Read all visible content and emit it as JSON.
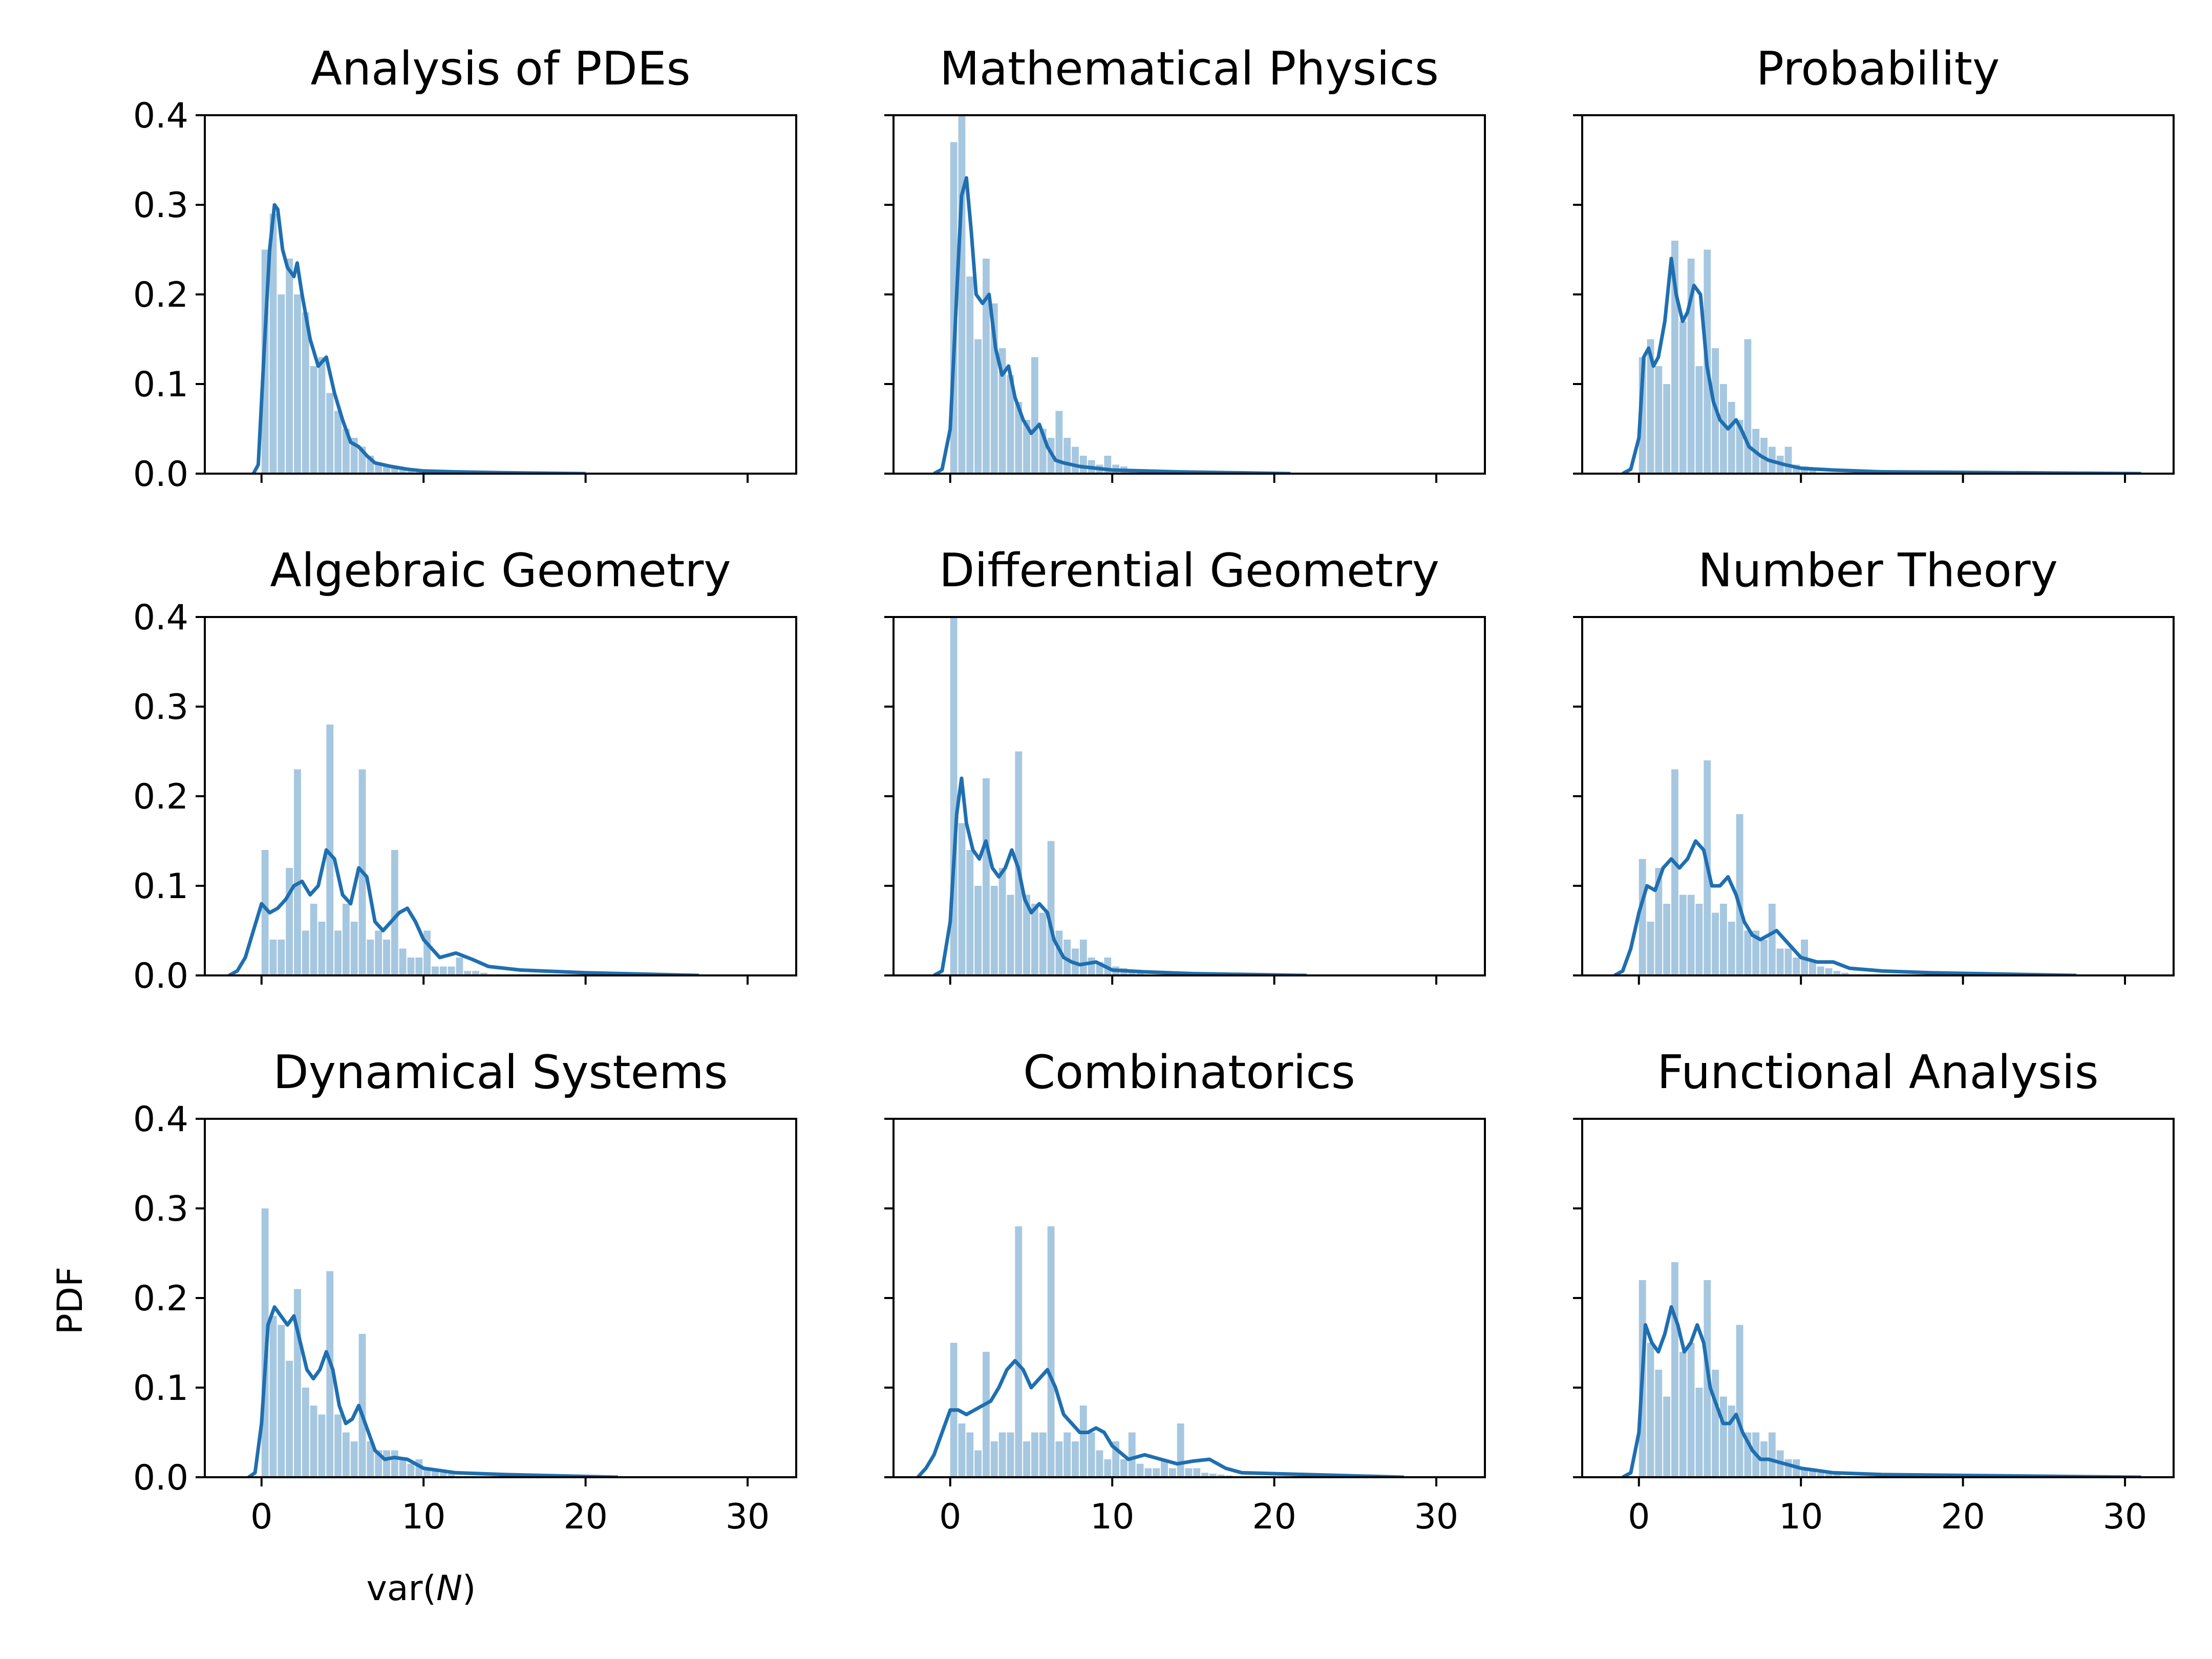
{
  "chart_data": [
    {
      "type": "histogram",
      "title": "Analysis of PDEs",
      "xlim": [
        -3.5,
        33
      ],
      "ylim": [
        0,
        0.4
      ],
      "xticks": [
        0,
        10,
        20,
        30
      ],
      "yticks": [
        0.0,
        0.1,
        0.2,
        0.3,
        0.4
      ],
      "bin_width": 0.5,
      "hist_values": [
        0.25,
        0.29,
        0.2,
        0.24,
        0.2,
        0.18,
        0.12,
        0.13,
        0.09,
        0.07,
        0.05,
        0.04,
        0.03,
        0.02,
        0.01,
        0.008,
        0.006,
        0.005,
        0.004,
        0.003
      ],
      "kde_x": [
        -0.5,
        -0.2,
        0.2,
        0.5,
        0.8,
        1.0,
        1.3,
        1.6,
        2.0,
        2.2,
        2.5,
        3.0,
        3.5,
        4.0,
        4.5,
        5.0,
        5.5,
        6.0,
        6.5,
        7.0,
        8.0,
        9.0,
        10.0,
        12.0,
        15.0,
        20.0
      ],
      "kde_y": [
        0.0,
        0.01,
        0.15,
        0.25,
        0.3,
        0.295,
        0.25,
        0.23,
        0.22,
        0.235,
        0.2,
        0.15,
        0.12,
        0.13,
        0.09,
        0.06,
        0.035,
        0.03,
        0.02,
        0.012,
        0.008,
        0.005,
        0.003,
        0.002,
        0.001,
        0.0
      ],
      "xlabel": "",
      "ylabel": ""
    },
    {
      "type": "histogram",
      "title": "Mathematical Physics",
      "xlim": [
        -3.5,
        33
      ],
      "ylim": [
        0,
        0.4
      ],
      "xticks": [
        0,
        10,
        20,
        30
      ],
      "yticks": [
        0.0,
        0.1,
        0.2,
        0.3,
        0.4
      ],
      "bin_width": 0.5,
      "hist_values": [
        0.37,
        0.4,
        0.22,
        0.15,
        0.24,
        0.19,
        0.14,
        0.11,
        0.08,
        0.06,
        0.13,
        0.05,
        0.04,
        0.07,
        0.04,
        0.03,
        0.02,
        0.015,
        0.01,
        0.02,
        0.01,
        0.008,
        0.005,
        0.004,
        0.003
      ],
      "kde_x": [
        -1.0,
        -0.5,
        0.0,
        0.4,
        0.7,
        1.0,
        1.3,
        1.6,
        2.0,
        2.4,
        2.8,
        3.2,
        3.6,
        4.0,
        4.5,
        5.0,
        5.5,
        6.0,
        6.5,
        7.0,
        8.0,
        9.0,
        10.0,
        12.0,
        14.0,
        21.0
      ],
      "kde_y": [
        0.0,
        0.005,
        0.05,
        0.2,
        0.31,
        0.33,
        0.27,
        0.2,
        0.19,
        0.2,
        0.14,
        0.11,
        0.12,
        0.085,
        0.06,
        0.045,
        0.055,
        0.03,
        0.015,
        0.012,
        0.008,
        0.006,
        0.004,
        0.003,
        0.002,
        0.0
      ],
      "xlabel": "",
      "ylabel": ""
    },
    {
      "type": "histogram",
      "title": "Probability",
      "xlim": [
        -3.5,
        33
      ],
      "ylim": [
        0,
        0.4
      ],
      "xticks": [
        0,
        10,
        20,
        30
      ],
      "yticks": [
        0.0,
        0.1,
        0.2,
        0.3,
        0.4
      ],
      "bin_width": 0.5,
      "hist_values": [
        0.13,
        0.15,
        0.12,
        0.1,
        0.26,
        0.17,
        0.24,
        0.12,
        0.25,
        0.14,
        0.1,
        0.08,
        0.06,
        0.15,
        0.05,
        0.04,
        0.03,
        0.02,
        0.03,
        0.01,
        0.008,
        0.005
      ],
      "kde_x": [
        -1.0,
        -0.5,
        0.0,
        0.3,
        0.6,
        0.9,
        1.2,
        1.6,
        2.0,
        2.3,
        2.7,
        3.0,
        3.4,
        3.8,
        4.2,
        4.6,
        5.0,
        5.5,
        6.0,
        6.3,
        6.8,
        7.5,
        8.0,
        9.0,
        10.0,
        12.0,
        15.0,
        31.0
      ],
      "kde_y": [
        0.0,
        0.005,
        0.04,
        0.13,
        0.14,
        0.12,
        0.13,
        0.17,
        0.24,
        0.2,
        0.17,
        0.18,
        0.21,
        0.2,
        0.12,
        0.08,
        0.06,
        0.05,
        0.06,
        0.05,
        0.03,
        0.02,
        0.015,
        0.01,
        0.006,
        0.004,
        0.002,
        0.0
      ],
      "xlabel": "",
      "ylabel": ""
    },
    {
      "type": "histogram",
      "title": "Algebraic Geometry",
      "xlim": [
        -3.5,
        33
      ],
      "ylim": [
        0,
        0.4
      ],
      "xticks": [
        0,
        10,
        20,
        30
      ],
      "yticks": [
        0.0,
        0.1,
        0.2,
        0.3,
        0.4
      ],
      "bin_width": 0.5,
      "hist_values": [
        0.14,
        0.04,
        0.04,
        0.12,
        0.23,
        0.05,
        0.08,
        0.06,
        0.28,
        0.05,
        0.08,
        0.06,
        0.23,
        0.04,
        0.05,
        0.04,
        0.14,
        0.03,
        0.02,
        0.02,
        0.05,
        0.01,
        0.01,
        0.01,
        0.02,
        0.005,
        0.005,
        0.003
      ],
      "kde_x": [
        -2.0,
        -1.5,
        -1.0,
        -0.5,
        0.0,
        0.5,
        1.0,
        1.5,
        2.0,
        2.5,
        3.0,
        3.5,
        4.0,
        4.5,
        5.0,
        5.5,
        6.0,
        6.5,
        7.0,
        7.5,
        8.0,
        8.5,
        9.0,
        9.5,
        10.0,
        11.0,
        12.0,
        13.0,
        14.0,
        16.0,
        20.0,
        27.0
      ],
      "kde_y": [
        0.0,
        0.005,
        0.02,
        0.05,
        0.08,
        0.07,
        0.075,
        0.085,
        0.1,
        0.105,
        0.09,
        0.1,
        0.14,
        0.13,
        0.09,
        0.08,
        0.12,
        0.11,
        0.06,
        0.05,
        0.06,
        0.07,
        0.075,
        0.06,
        0.04,
        0.02,
        0.025,
        0.018,
        0.01,
        0.006,
        0.003,
        0.0
      ],
      "xlabel": "",
      "ylabel": ""
    },
    {
      "type": "histogram",
      "title": "Differential Geometry",
      "xlim": [
        -3.5,
        33
      ],
      "ylim": [
        0,
        0.4
      ],
      "xticks": [
        0,
        10,
        20,
        30
      ],
      "yticks": [
        0.0,
        0.1,
        0.2,
        0.3,
        0.4
      ],
      "bin_width": 0.5,
      "hist_values": [
        0.4,
        0.17,
        0.14,
        0.1,
        0.22,
        0.1,
        0.12,
        0.09,
        0.25,
        0.09,
        0.08,
        0.07,
        0.15,
        0.05,
        0.04,
        0.03,
        0.04,
        0.02,
        0.015,
        0.02,
        0.01,
        0.008,
        0.005,
        0.004
      ],
      "kde_x": [
        -1.0,
        -0.5,
        0.0,
        0.4,
        0.7,
        1.0,
        1.4,
        1.8,
        2.2,
        2.6,
        3.0,
        3.4,
        3.8,
        4.2,
        4.6,
        5.0,
        5.5,
        6.0,
        6.4,
        7.0,
        7.5,
        8.0,
        9.0,
        10.0,
        12.0,
        15.0,
        22.0
      ],
      "kde_y": [
        0.0,
        0.005,
        0.06,
        0.18,
        0.22,
        0.17,
        0.14,
        0.13,
        0.15,
        0.12,
        0.11,
        0.12,
        0.14,
        0.12,
        0.085,
        0.07,
        0.08,
        0.07,
        0.04,
        0.02,
        0.015,
        0.012,
        0.015,
        0.006,
        0.004,
        0.002,
        0.0
      ],
      "xlabel": "",
      "ylabel": ""
    },
    {
      "type": "histogram",
      "title": "Number Theory",
      "xlim": [
        -3.5,
        33
      ],
      "ylim": [
        0,
        0.4
      ],
      "xticks": [
        0,
        10,
        20,
        30
      ],
      "yticks": [
        0.0,
        0.1,
        0.2,
        0.3,
        0.4
      ],
      "bin_width": 0.5,
      "hist_values": [
        0.13,
        0.06,
        0.12,
        0.08,
        0.23,
        0.09,
        0.09,
        0.08,
        0.24,
        0.07,
        0.08,
        0.06,
        0.18,
        0.05,
        0.05,
        0.04,
        0.08,
        0.03,
        0.03,
        0.02,
        0.04,
        0.015,
        0.01,
        0.008,
        0.005,
        0.003
      ],
      "kde_x": [
        -1.5,
        -1.0,
        -0.5,
        0.0,
        0.5,
        1.0,
        1.5,
        2.0,
        2.5,
        3.0,
        3.5,
        4.0,
        4.5,
        5.0,
        5.5,
        6.0,
        6.5,
        7.0,
        7.5,
        8.0,
        8.5,
        9.0,
        10.0,
        11.0,
        12.0,
        13.0,
        15.0,
        18.0,
        27.0
      ],
      "kde_y": [
        0.0,
        0.005,
        0.03,
        0.07,
        0.1,
        0.095,
        0.12,
        0.13,
        0.12,
        0.13,
        0.15,
        0.14,
        0.1,
        0.1,
        0.11,
        0.09,
        0.06,
        0.045,
        0.04,
        0.045,
        0.05,
        0.04,
        0.02,
        0.015,
        0.015,
        0.008,
        0.005,
        0.003,
        0.0
      ],
      "xlabel": "",
      "ylabel": ""
    },
    {
      "type": "histogram",
      "title": "Dynamical Systems",
      "xlim": [
        -3.5,
        33
      ],
      "ylim": [
        0,
        0.4
      ],
      "xticks": [
        0,
        10,
        20,
        30
      ],
      "yticks": [
        0.0,
        0.1,
        0.2,
        0.3,
        0.4
      ],
      "bin_width": 0.5,
      "hist_values": [
        0.3,
        0.18,
        0.17,
        0.13,
        0.21,
        0.1,
        0.08,
        0.07,
        0.23,
        0.07,
        0.05,
        0.04,
        0.16,
        0.04,
        0.03,
        0.03,
        0.03,
        0.02,
        0.015,
        0.02,
        0.01,
        0.008,
        0.005,
        0.004
      ],
      "kde_x": [
        -0.8,
        -0.4,
        0.0,
        0.4,
        0.8,
        1.2,
        1.6,
        2.0,
        2.4,
        2.8,
        3.2,
        3.6,
        4.0,
        4.4,
        4.8,
        5.2,
        5.6,
        6.0,
        6.4,
        7.0,
        7.6,
        8.2,
        9.0,
        10.0,
        12.0,
        15.0,
        22.0
      ],
      "kde_y": [
        0.0,
        0.005,
        0.06,
        0.17,
        0.19,
        0.18,
        0.17,
        0.18,
        0.15,
        0.12,
        0.11,
        0.12,
        0.14,
        0.12,
        0.08,
        0.06,
        0.065,
        0.08,
        0.06,
        0.03,
        0.02,
        0.022,
        0.02,
        0.01,
        0.005,
        0.003,
        0.0
      ],
      "xlabel": "var(N)",
      "ylabel": "PDF"
    },
    {
      "type": "histogram",
      "title": "Combinatorics",
      "xlim": [
        -3.5,
        33
      ],
      "ylim": [
        0,
        0.4
      ],
      "xticks": [
        0,
        10,
        20,
        30
      ],
      "yticks": [
        0.0,
        0.1,
        0.2,
        0.3,
        0.4
      ],
      "bin_width": 0.5,
      "hist_values": [
        0.15,
        0.06,
        0.05,
        0.03,
        0.14,
        0.04,
        0.05,
        0.05,
        0.28,
        0.04,
        0.05,
        0.05,
        0.28,
        0.04,
        0.05,
        0.04,
        0.08,
        0.05,
        0.03,
        0.02,
        0.04,
        0.02,
        0.05,
        0.015,
        0.01,
        0.01,
        0.02,
        0.01,
        0.06,
        0.01,
        0.01,
        0.005,
        0.004,
        0.003,
        0.002
      ],
      "kde_x": [
        -2.0,
        -1.5,
        -1.0,
        -0.5,
        0.0,
        0.5,
        1.0,
        1.5,
        2.0,
        2.5,
        3.0,
        3.5,
        4.0,
        4.5,
        5.0,
        5.5,
        6.0,
        6.5,
        7.0,
        7.5,
        8.0,
        8.5,
        9.0,
        9.5,
        10.0,
        11.0,
        12.0,
        13.0,
        14.0,
        15.0,
        16.0,
        17.0,
        18.0,
        20.0,
        24.0,
        28.0
      ],
      "kde_y": [
        0.0,
        0.01,
        0.025,
        0.05,
        0.075,
        0.075,
        0.07,
        0.075,
        0.08,
        0.085,
        0.1,
        0.12,
        0.13,
        0.12,
        0.1,
        0.11,
        0.12,
        0.1,
        0.07,
        0.06,
        0.05,
        0.05,
        0.055,
        0.05,
        0.035,
        0.02,
        0.025,
        0.02,
        0.015,
        0.018,
        0.02,
        0.01,
        0.005,
        0.004,
        0.002,
        0.0
      ],
      "xlabel": "",
      "ylabel": ""
    },
    {
      "type": "histogram",
      "title": "Functional Analysis",
      "xlim": [
        -3.5,
        33
      ],
      "ylim": [
        0,
        0.4
      ],
      "xticks": [
        0,
        10,
        20,
        30
      ],
      "yticks": [
        0.0,
        0.1,
        0.2,
        0.3,
        0.4
      ],
      "bin_width": 0.5,
      "hist_values": [
        0.22,
        0.15,
        0.12,
        0.09,
        0.24,
        0.14,
        0.15,
        0.1,
        0.22,
        0.12,
        0.09,
        0.08,
        0.17,
        0.05,
        0.05,
        0.04,
        0.05,
        0.03,
        0.02,
        0.02,
        0.01,
        0.008,
        0.005,
        0.004,
        0.003
      ],
      "kde_x": [
        -1.0,
        -0.5,
        0.0,
        0.4,
        0.8,
        1.2,
        1.6,
        2.0,
        2.4,
        2.8,
        3.2,
        3.6,
        4.0,
        4.4,
        4.8,
        5.2,
        5.6,
        6.0,
        6.4,
        7.0,
        7.5,
        8.0,
        9.0,
        10.0,
        12.0,
        15.0,
        20.0,
        31.0
      ],
      "kde_y": [
        0.0,
        0.005,
        0.05,
        0.17,
        0.15,
        0.14,
        0.16,
        0.19,
        0.17,
        0.14,
        0.15,
        0.17,
        0.15,
        0.1,
        0.08,
        0.06,
        0.06,
        0.07,
        0.05,
        0.03,
        0.02,
        0.02,
        0.015,
        0.01,
        0.005,
        0.003,
        0.002,
        0.0
      ],
      "xlabel": "",
      "ylabel": ""
    }
  ]
}
